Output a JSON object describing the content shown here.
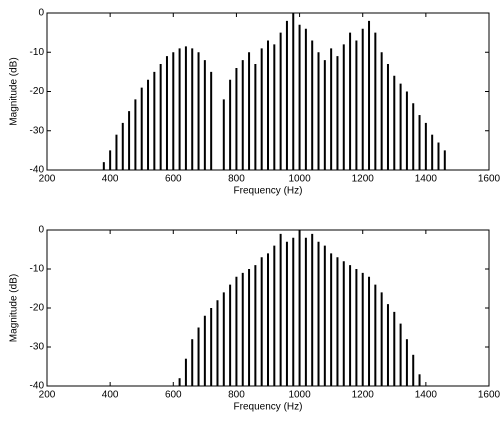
{
  "chart_data": [
    {
      "type": "stem",
      "xlabel": "Frequency (Hz)",
      "ylabel": "Magnitude (dB)",
      "xlim": [
        200,
        1600
      ],
      "ylim": [
        -40,
        0
      ],
      "xticks": [
        200,
        400,
        600,
        800,
        1000,
        1200,
        1400,
        1600
      ],
      "yticks": [
        -40,
        -30,
        -20,
        -10,
        0
      ],
      "color": "#000000",
      "x": [
        380,
        400,
        420,
        440,
        460,
        480,
        500,
        520,
        540,
        560,
        580,
        600,
        620,
        640,
        660,
        680,
        700,
        720,
        760,
        780,
        800,
        820,
        840,
        860,
        880,
        900,
        920,
        940,
        960,
        980,
        1000,
        1020,
        1040,
        1060,
        1080,
        1100,
        1120,
        1140,
        1160,
        1180,
        1200,
        1220,
        1240,
        1260,
        1280,
        1300,
        1320,
        1340,
        1360,
        1380,
        1400,
        1420,
        1440,
        1460
      ],
      "values": [
        -38,
        -35,
        -31,
        -28,
        -25,
        -22,
        -19,
        -17,
        -15,
        -13,
        -11,
        -10,
        -9,
        -8.5,
        -9,
        -10,
        -12,
        -15,
        -22,
        -17,
        -14,
        -12,
        -10,
        -13,
        -9,
        -7,
        -8,
        -5,
        -2,
        0,
        -3,
        -4,
        -7,
        -10,
        -12,
        -9,
        -11,
        -8,
        -5,
        -7,
        -4,
        -2,
        -5,
        -10,
        -13,
        -16,
        -18,
        -20,
        -23,
        -26,
        -28,
        -31,
        -33,
        -35
      ]
    },
    {
      "type": "stem",
      "xlabel": "Frequency (Hz)",
      "ylabel": "Magnitude (dB)",
      "xlim": [
        200,
        1600
      ],
      "ylim": [
        -40,
        0
      ],
      "xticks": [
        200,
        400,
        600,
        800,
        1000,
        1200,
        1400,
        1600
      ],
      "yticks": [
        -40,
        -30,
        -20,
        -10,
        0
      ],
      "color": "#000000",
      "x": [
        620,
        640,
        660,
        680,
        700,
        720,
        740,
        760,
        780,
        800,
        820,
        840,
        860,
        880,
        900,
        920,
        940,
        960,
        980,
        1000,
        1020,
        1040,
        1060,
        1080,
        1100,
        1120,
        1140,
        1160,
        1180,
        1200,
        1220,
        1240,
        1260,
        1280,
        1300,
        1320,
        1340,
        1360,
        1380
      ],
      "values": [
        -38,
        -33,
        -28,
        -25,
        -22,
        -20,
        -18,
        -16,
        -14,
        -12,
        -11,
        -10,
        -9,
        -7,
        -6,
        -4,
        -1,
        -3,
        -2,
        0,
        -2,
        -1,
        -3,
        -4,
        -6,
        -7,
        -8,
        -9,
        -10,
        -11,
        -12,
        -14,
        -16,
        -19,
        -21,
        -24,
        -28,
        -32,
        -37
      ]
    }
  ]
}
